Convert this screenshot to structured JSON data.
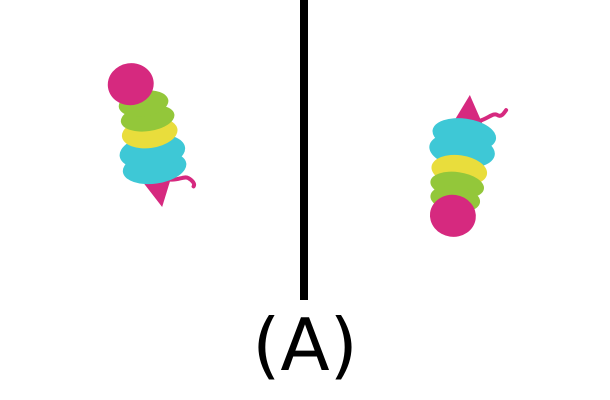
{
  "caption": "(A)",
  "colors": {
    "background": "#ffffff",
    "divider": "#000000",
    "magenta": "#d6297f",
    "green": "#93c73a",
    "yellow": "#e9dd3c",
    "cyan": "#3ec8d6"
  },
  "panels": [
    {
      "name": "left-panel",
      "figure": "segmented-figure",
      "orientation": "head-up"
    },
    {
      "name": "right-panel",
      "figure": "segmented-figure",
      "orientation": "head-down"
    }
  ]
}
